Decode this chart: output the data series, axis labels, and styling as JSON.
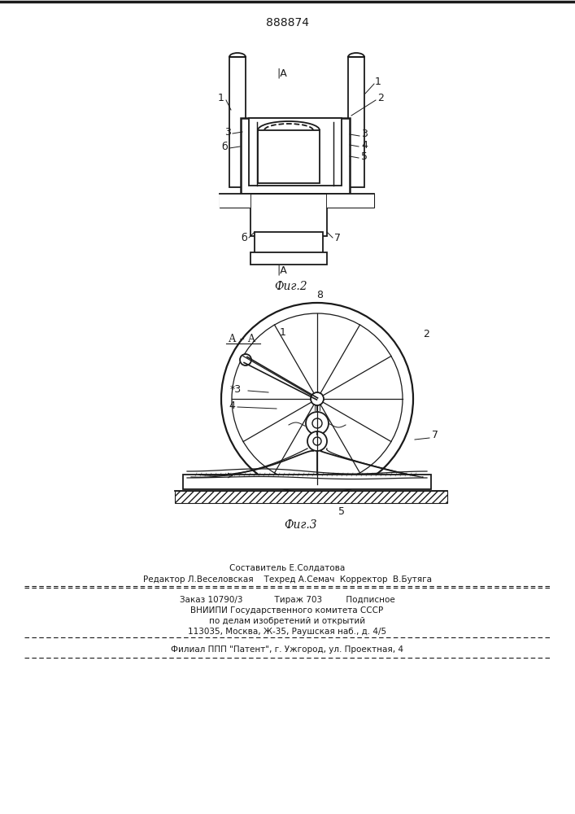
{
  "patent_number": "888874",
  "fig2_caption": "Фиг.2",
  "fig3_caption": "Фиг.3",
  "footer_line1": "Составитель Е.Солдатова",
  "footer_line2": "Редактор Л.Веселовская    Техред А.Семач  Корректор  В.Бутяга",
  "footer_line3": "Заказ 10790/3            Тираж 703         Подписное",
  "footer_line4": "ВНИИПИ Государственного комитета СССР",
  "footer_line5": "по делам изобретений и открытий",
  "footer_line6": "113035, Москва, Ж-35, Раушская наб., д. 4/5",
  "footer_line7": "Филиал ППП \"Патент\", г. Ужгород, ул. Проектная, 4",
  "bg_color": "#ffffff",
  "line_color": "#1a1a1a"
}
